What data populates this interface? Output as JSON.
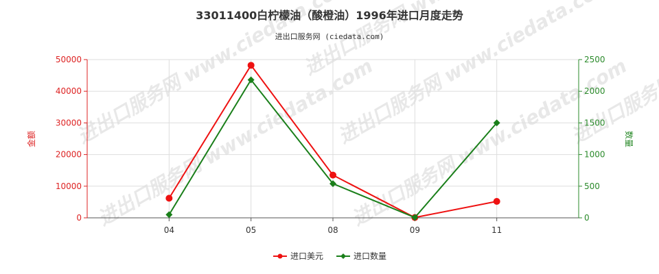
{
  "chart_data": {
    "type": "line",
    "title": "33011400白柠檬油（酸橙油）1996年进口月度走势",
    "subtitle": "进出口服务网 (ciedata.com)",
    "watermark": "进出口服务网 www.ciedata.com",
    "categories": [
      "04",
      "05",
      "08",
      "09",
      "11"
    ],
    "y_left": {
      "label": "金额",
      "ylim": [
        0,
        50000
      ],
      "ticks": [
        "0",
        "10000",
        "20000",
        "30000",
        "40000",
        "50000"
      ]
    },
    "y_right": {
      "label": "数量",
      "ylim": [
        0,
        2500
      ],
      "ticks": [
        "0",
        "500",
        "1000",
        "1500",
        "2000",
        "2500"
      ]
    },
    "series": [
      {
        "name": "进口美元",
        "axis": "left",
        "color": "#ee1111",
        "values": [
          6200,
          48200,
          13500,
          100,
          5200
        ]
      },
      {
        "name": "进口数量",
        "axis": "right",
        "color": "#1a7f1a",
        "values": [
          50,
          2180,
          540,
          5,
          1500
        ]
      }
    ],
    "grid": true,
    "legend_position": "bottom-center"
  }
}
